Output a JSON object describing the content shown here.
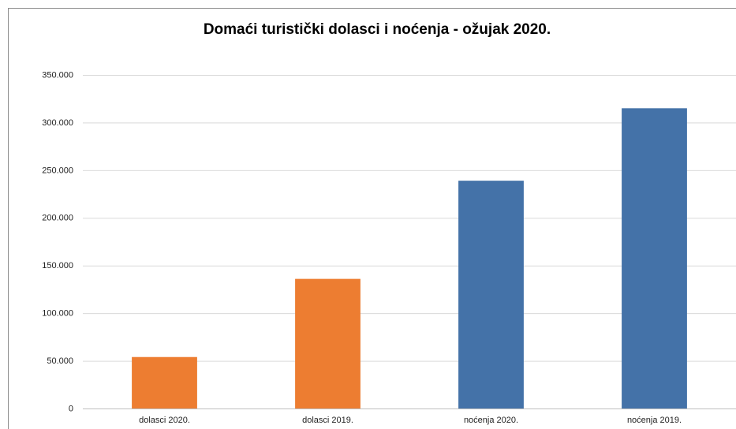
{
  "chart_data": {
    "type": "bar",
    "title": "Domaći turistički dolasci i noćenja - ožujak 2020.",
    "categories": [
      "dolasci 2020.",
      "dolasci 2019.",
      "noćenja 2020.",
      "noćenja 2019."
    ],
    "values": [
      54000,
      136000,
      239000,
      315000
    ],
    "colors": [
      "#ed7d31",
      "#ed7d31",
      "#4472a8",
      "#4472a8"
    ],
    "ylim": [
      0,
      350000
    ],
    "yticks": [
      0,
      {
        "value": 50000,
        "label": "50.000"
      },
      {
        "value": 100000,
        "label": "100.000"
      },
      {
        "value": 150000,
        "label": "150.000"
      },
      {
        "value": 200000,
        "label": "200.000"
      },
      {
        "value": 250000,
        "label": "250.000"
      },
      {
        "value": 300000,
        "label": "300.000"
      },
      {
        "value": 350000,
        "label": "350.000"
      }
    ],
    "grid": true
  }
}
